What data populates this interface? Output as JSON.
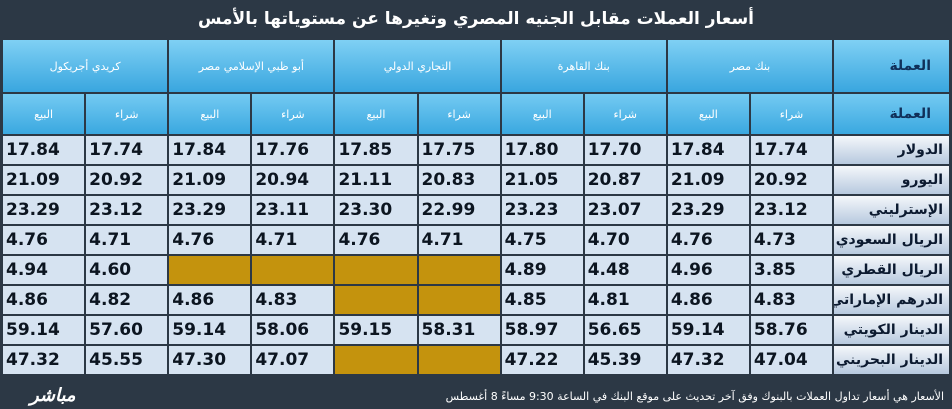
{
  "title": "أسعار العملات مقابل الجنيه المصري وتغيرها عن مستوياتها بالأمس",
  "table": {
    "header": {
      "currency": "العملة",
      "banks": [
        "بنك مصر",
        "بنك القاهرة",
        "التجاري الدولي",
        "أبو ظبي الإسلامي مصر",
        "كريدي أجريكول"
      ],
      "buy": "شراء",
      "sell": "البيع"
    },
    "rows": [
      {
        "currency": "الدولار",
        "prices": [
          [
            "17.74",
            "17.84"
          ],
          [
            "17.70",
            "17.80"
          ],
          [
            "17.75",
            "17.85"
          ],
          [
            "17.76",
            "17.84"
          ],
          [
            "17.74",
            "17.84"
          ]
        ]
      },
      {
        "currency": "اليورو",
        "prices": [
          [
            "20.92",
            "21.09"
          ],
          [
            "20.87",
            "21.05"
          ],
          [
            "20.83",
            "21.11"
          ],
          [
            "20.94",
            "21.09"
          ],
          [
            "20.92",
            "21.09"
          ]
        ]
      },
      {
        "currency": "الإسترليني",
        "prices": [
          [
            "23.12",
            "23.29"
          ],
          [
            "23.07",
            "23.23"
          ],
          [
            "22.99",
            "23.30"
          ],
          [
            "23.11",
            "23.29"
          ],
          [
            "23.12",
            "23.29"
          ]
        ]
      },
      {
        "currency": "الريال السعودي",
        "prices": [
          [
            "4.73",
            "4.76"
          ],
          [
            "4.70",
            "4.75"
          ],
          [
            "4.71",
            "4.76"
          ],
          [
            "4.71",
            "4.76"
          ],
          [
            "4.71",
            "4.76"
          ]
        ]
      },
      {
        "currency": "الريال القطري",
        "prices": [
          [
            "3.85",
            "4.96"
          ],
          [
            "4.48",
            "4.89"
          ],
          [
            null,
            null
          ],
          [
            null,
            null
          ],
          [
            "4.60",
            "4.94"
          ]
        ]
      },
      {
        "currency": "الدرهم الإماراتي",
        "prices": [
          [
            "4.83",
            "4.86"
          ],
          [
            "4.81",
            "4.85"
          ],
          [
            null,
            null
          ],
          [
            "4.83",
            "4.86"
          ],
          [
            "4.82",
            "4.86"
          ]
        ]
      },
      {
        "currency": "الدينار الكويتي",
        "prices": [
          [
            "58.76",
            "59.14"
          ],
          [
            "56.65",
            "58.97"
          ],
          [
            "58.31",
            "59.15"
          ],
          [
            "58.06",
            "59.14"
          ],
          [
            "57.60",
            "59.14"
          ]
        ]
      },
      {
        "currency": "الدينار البحريني",
        "prices": [
          [
            "47.04",
            "47.32"
          ],
          [
            "45.39",
            "47.22"
          ],
          [
            null,
            null
          ],
          [
            "47.07",
            "47.30"
          ],
          [
            "45.55",
            "47.32"
          ]
        ]
      }
    ]
  },
  "footer": {
    "note": "الأسعار هي أسعار تداول العملات بالبنوك وفق آخر تحديث على موقع البنك في الساعة 9:30  مساءً  8 أغسطس",
    "logo": "مباشر"
  }
}
